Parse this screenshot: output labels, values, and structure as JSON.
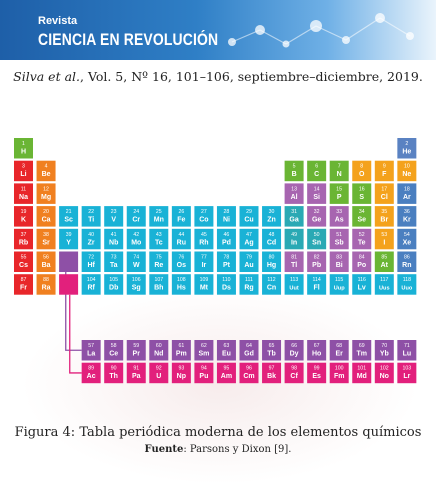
{
  "header": {
    "journal_line1": "Revista",
    "journal_line2": "CIENCIA EN REVOLUCIÓN"
  },
  "citation": {
    "authors": "Silva et al.",
    "details": ", Vol. 5, Nº 16, 101–106, septiembre–diciembre, 2019."
  },
  "figure": {
    "caption": "Figura 4: Tabla periódica moderna de los elementos químicos",
    "source_label": "Fuente",
    "source_text": ": Parsons y Dixon [9]."
  },
  "colors": {
    "alkali": "#e8262a",
    "alkaline": "#f08020",
    "transition": "#19b2d6",
    "post_transition": "#2aa9b4",
    "metalloid": "#a765b0",
    "nonmetal": "#6ab534",
    "halogen": "#f4a21c",
    "noble": "#4a7fc0",
    "lanthanide": "#8e50a6",
    "actinide": "#e2207c",
    "hydrogen": "#6ab534",
    "helium": "#5a82c2"
  },
  "elements": [
    {
      "n": 1,
      "s": "H",
      "r": 1,
      "c": 1,
      "cat": "hydrogen"
    },
    {
      "n": 2,
      "s": "He",
      "r": 1,
      "c": 18,
      "cat": "helium"
    },
    {
      "n": 3,
      "s": "Li",
      "r": 2,
      "c": 1,
      "cat": "alkali"
    },
    {
      "n": 4,
      "s": "Be",
      "r": 2,
      "c": 2,
      "cat": "alkaline"
    },
    {
      "n": 5,
      "s": "B",
      "r": 2,
      "c": 13,
      "cat": "nonmetal"
    },
    {
      "n": 6,
      "s": "C",
      "r": 2,
      "c": 14,
      "cat": "nonmetal"
    },
    {
      "n": 7,
      "s": "N",
      "r": 2,
      "c": 15,
      "cat": "nonmetal"
    },
    {
      "n": 8,
      "s": "O",
      "r": 2,
      "c": 16,
      "cat": "halogen"
    },
    {
      "n": 9,
      "s": "F",
      "r": 2,
      "c": 17,
      "cat": "halogen"
    },
    {
      "n": 10,
      "s": "Ne",
      "r": 2,
      "c": 18,
      "cat": "halogen"
    },
    {
      "n": 11,
      "s": "Na",
      "r": 3,
      "c": 1,
      "cat": "alkali"
    },
    {
      "n": 12,
      "s": "Mg",
      "r": 3,
      "c": 2,
      "cat": "alkaline"
    },
    {
      "n": 13,
      "s": "Al",
      "r": 3,
      "c": 13,
      "cat": "metalloid"
    },
    {
      "n": 14,
      "s": "Si",
      "r": 3,
      "c": 14,
      "cat": "metalloid"
    },
    {
      "n": 15,
      "s": "P",
      "r": 3,
      "c": 15,
      "cat": "nonmetal"
    },
    {
      "n": 16,
      "s": "S",
      "r": 3,
      "c": 16,
      "cat": "nonmetal"
    },
    {
      "n": 17,
      "s": "Cl",
      "r": 3,
      "c": 17,
      "cat": "halogen"
    },
    {
      "n": 18,
      "s": "Ar",
      "r": 3,
      "c": 18,
      "cat": "noble"
    },
    {
      "n": 19,
      "s": "K",
      "r": 4,
      "c": 1,
      "cat": "alkali"
    },
    {
      "n": 20,
      "s": "Ca",
      "r": 4,
      "c": 2,
      "cat": "alkaline"
    },
    {
      "n": 21,
      "s": "Sc",
      "r": 4,
      "c": 3,
      "cat": "transition"
    },
    {
      "n": 22,
      "s": "Ti",
      "r": 4,
      "c": 4,
      "cat": "transition"
    },
    {
      "n": 23,
      "s": "V",
      "r": 4,
      "c": 5,
      "cat": "transition"
    },
    {
      "n": 24,
      "s": "Cr",
      "r": 4,
      "c": 6,
      "cat": "transition"
    },
    {
      "n": 25,
      "s": "Mn",
      "r": 4,
      "c": 7,
      "cat": "transition"
    },
    {
      "n": 26,
      "s": "Fe",
      "r": 4,
      "c": 8,
      "cat": "transition"
    },
    {
      "n": 27,
      "s": "Co",
      "r": 4,
      "c": 9,
      "cat": "transition"
    },
    {
      "n": 28,
      "s": "Ni",
      "r": 4,
      "c": 10,
      "cat": "transition"
    },
    {
      "n": 29,
      "s": "Cu",
      "r": 4,
      "c": 11,
      "cat": "transition"
    },
    {
      "n": 30,
      "s": "Zn",
      "r": 4,
      "c": 12,
      "cat": "transition"
    },
    {
      "n": 31,
      "s": "Ga",
      "r": 4,
      "c": 13,
      "cat": "post_transition"
    },
    {
      "n": 32,
      "s": "Ge",
      "r": 4,
      "c": 14,
      "cat": "metalloid"
    },
    {
      "n": 33,
      "s": "As",
      "r": 4,
      "c": 15,
      "cat": "metalloid"
    },
    {
      "n": 34,
      "s": "Se",
      "r": 4,
      "c": 16,
      "cat": "nonmetal"
    },
    {
      "n": 35,
      "s": "Br",
      "r": 4,
      "c": 17,
      "cat": "halogen"
    },
    {
      "n": 36,
      "s": "Kr",
      "r": 4,
      "c": 18,
      "cat": "noble"
    },
    {
      "n": 37,
      "s": "Rb",
      "r": 5,
      "c": 1,
      "cat": "alkali"
    },
    {
      "n": 38,
      "s": "Sr",
      "r": 5,
      "c": 2,
      "cat": "alkaline"
    },
    {
      "n": 39,
      "s": "Y",
      "r": 5,
      "c": 3,
      "cat": "transition"
    },
    {
      "n": 40,
      "s": "Zr",
      "r": 5,
      "c": 4,
      "cat": "transition"
    },
    {
      "n": 41,
      "s": "Nb",
      "r": 5,
      "c": 5,
      "cat": "transition"
    },
    {
      "n": 42,
      "s": "Mo",
      "r": 5,
      "c": 6,
      "cat": "transition"
    },
    {
      "n": 43,
      "s": "Tc",
      "r": 5,
      "c": 7,
      "cat": "transition"
    },
    {
      "n": 44,
      "s": "Ru",
      "r": 5,
      "c": 8,
      "cat": "transition"
    },
    {
      "n": 45,
      "s": "Rh",
      "r": 5,
      "c": 9,
      "cat": "transition"
    },
    {
      "n": 46,
      "s": "Pd",
      "r": 5,
      "c": 10,
      "cat": "transition"
    },
    {
      "n": 47,
      "s": "Ag",
      "r": 5,
      "c": 11,
      "cat": "transition"
    },
    {
      "n": 48,
      "s": "Cd",
      "r": 5,
      "c": 12,
      "cat": "transition"
    },
    {
      "n": 49,
      "s": "In",
      "r": 5,
      "c": 13,
      "cat": "post_transition"
    },
    {
      "n": 50,
      "s": "Sn",
      "r": 5,
      "c": 14,
      "cat": "post_transition"
    },
    {
      "n": 51,
      "s": "Sb",
      "r": 5,
      "c": 15,
      "cat": "metalloid"
    },
    {
      "n": 52,
      "s": "Te",
      "r": 5,
      "c": 16,
      "cat": "metalloid"
    },
    {
      "n": 53,
      "s": "I",
      "r": 5,
      "c": 17,
      "cat": "halogen"
    },
    {
      "n": 54,
      "s": "Xe",
      "r": 5,
      "c": 18,
      "cat": "noble"
    },
    {
      "n": 55,
      "s": "Cs",
      "r": 6,
      "c": 1,
      "cat": "alkali"
    },
    {
      "n": 56,
      "s": "Ba",
      "r": 6,
      "c": 2,
      "cat": "alkaline"
    },
    {
      "n": 0,
      "s": "",
      "r": 6,
      "c": 3,
      "cat": "lanthanide"
    },
    {
      "n": 72,
      "s": "Hf",
      "r": 6,
      "c": 4,
      "cat": "transition"
    },
    {
      "n": 73,
      "s": "Ta",
      "r": 6,
      "c": 5,
      "cat": "transition"
    },
    {
      "n": 74,
      "s": "W",
      "r": 6,
      "c": 6,
      "cat": "transition"
    },
    {
      "n": 75,
      "s": "Re",
      "r": 6,
      "c": 7,
      "cat": "transition"
    },
    {
      "n": 76,
      "s": "Os",
      "r": 6,
      "c": 8,
      "cat": "transition"
    },
    {
      "n": 77,
      "s": "Ir",
      "r": 6,
      "c": 9,
      "cat": "transition"
    },
    {
      "n": 78,
      "s": "Pt",
      "r": 6,
      "c": 10,
      "cat": "transition"
    },
    {
      "n": 79,
      "s": "Au",
      "r": 6,
      "c": 11,
      "cat": "transition"
    },
    {
      "n": 80,
      "s": "Hg",
      "r": 6,
      "c": 12,
      "cat": "transition"
    },
    {
      "n": 81,
      "s": "Tl",
      "r": 6,
      "c": 13,
      "cat": "metalloid"
    },
    {
      "n": 82,
      "s": "Pb",
      "r": 6,
      "c": 14,
      "cat": "metalloid"
    },
    {
      "n": 83,
      "s": "Bi",
      "r": 6,
      "c": 15,
      "cat": "metalloid"
    },
    {
      "n": 84,
      "s": "Po",
      "r": 6,
      "c": 16,
      "cat": "metalloid"
    },
    {
      "n": 85,
      "s": "At",
      "r": 6,
      "c": 17,
      "cat": "nonmetal"
    },
    {
      "n": 86,
      "s": "Rn",
      "r": 6,
      "c": 18,
      "cat": "noble"
    },
    {
      "n": 87,
      "s": "Fr",
      "r": 7,
      "c": 1,
      "cat": "alkali"
    },
    {
      "n": 88,
      "s": "Ra",
      "r": 7,
      "c": 2,
      "cat": "alkaline"
    },
    {
      "n": 0,
      "s": "",
      "r": 7,
      "c": 3,
      "cat": "actinide"
    },
    {
      "n": 104,
      "s": "Rf",
      "r": 7,
      "c": 4,
      "cat": "transition"
    },
    {
      "n": 105,
      "s": "Db",
      "r": 7,
      "c": 5,
      "cat": "transition"
    },
    {
      "n": 106,
      "s": "Sg",
      "r": 7,
      "c": 6,
      "cat": "transition"
    },
    {
      "n": 107,
      "s": "Bh",
      "r": 7,
      "c": 7,
      "cat": "transition"
    },
    {
      "n": 108,
      "s": "Hs",
      "r": 7,
      "c": 8,
      "cat": "transition"
    },
    {
      "n": 109,
      "s": "Mt",
      "r": 7,
      "c": 9,
      "cat": "transition"
    },
    {
      "n": 110,
      "s": "Ds",
      "r": 7,
      "c": 10,
      "cat": "transition"
    },
    {
      "n": 111,
      "s": "Rg",
      "r": 7,
      "c": 11,
      "cat": "transition"
    },
    {
      "n": 112,
      "s": "Cn",
      "r": 7,
      "c": 12,
      "cat": "transition"
    },
    {
      "n": 113,
      "s": "Uut",
      "r": 7,
      "c": 13,
      "cat": "transition"
    },
    {
      "n": 114,
      "s": "Fl",
      "r": 7,
      "c": 14,
      "cat": "transition"
    },
    {
      "n": 115,
      "s": "Uup",
      "r": 7,
      "c": 15,
      "cat": "transition"
    },
    {
      "n": 116,
      "s": "Lv",
      "r": 7,
      "c": 16,
      "cat": "transition"
    },
    {
      "n": 117,
      "s": "Uus",
      "r": 7,
      "c": 17,
      "cat": "transition"
    },
    {
      "n": 118,
      "s": "Uuo",
      "r": 7,
      "c": 18,
      "cat": "transition"
    },
    {
      "n": 57,
      "s": "La",
      "r": 9,
      "c": 4,
      "cat": "lanthanide"
    },
    {
      "n": 58,
      "s": "Ce",
      "r": 9,
      "c": 5,
      "cat": "lanthanide"
    },
    {
      "n": 59,
      "s": "Pr",
      "r": 9,
      "c": 6,
      "cat": "lanthanide"
    },
    {
      "n": 60,
      "s": "Nd",
      "r": 9,
      "c": 7,
      "cat": "lanthanide"
    },
    {
      "n": 61,
      "s": "Pm",
      "r": 9,
      "c": 8,
      "cat": "lanthanide"
    },
    {
      "n": 62,
      "s": "Sm",
      "r": 9,
      "c": 9,
      "cat": "lanthanide"
    },
    {
      "n": 63,
      "s": "Eu",
      "r": 9,
      "c": 10,
      "cat": "lanthanide"
    },
    {
      "n": 64,
      "s": "Gd",
      "r": 9,
      "c": 11,
      "cat": "lanthanide"
    },
    {
      "n": 65,
      "s": "Tb",
      "r": 9,
      "c": 12,
      "cat": "lanthanide"
    },
    {
      "n": 66,
      "s": "Dy",
      "r": 9,
      "c": 13,
      "cat": "lanthanide"
    },
    {
      "n": 67,
      "s": "Ho",
      "r": 9,
      "c": 14,
      "cat": "lanthanide"
    },
    {
      "n": 68,
      "s": "Er",
      "r": 9,
      "c": 15,
      "cat": "lanthanide"
    },
    {
      "n": 69,
      "s": "Tm",
      "r": 9,
      "c": 16,
      "cat": "lanthanide"
    },
    {
      "n": 70,
      "s": "Yb",
      "r": 9,
      "c": 17,
      "cat": "lanthanide"
    },
    {
      "n": 71,
      "s": "Lu",
      "r": 9,
      "c": 18,
      "cat": "lanthanide"
    },
    {
      "n": 89,
      "s": "Ac",
      "r": 10,
      "c": 4,
      "cat": "actinide"
    },
    {
      "n": 90,
      "s": "Th",
      "r": 10,
      "c": 5,
      "cat": "actinide"
    },
    {
      "n": 91,
      "s": "Pa",
      "r": 10,
      "c": 6,
      "cat": "actinide"
    },
    {
      "n": 92,
      "s": "U",
      "r": 10,
      "c": 7,
      "cat": "actinide"
    },
    {
      "n": 93,
      "s": "Np",
      "r": 10,
      "c": 8,
      "cat": "actinide"
    },
    {
      "n": 94,
      "s": "Pu",
      "r": 10,
      "c": 9,
      "cat": "actinide"
    },
    {
      "n": 95,
      "s": "Am",
      "r": 10,
      "c": 10,
      "cat": "actinide"
    },
    {
      "n": 96,
      "s": "Cm",
      "r": 10,
      "c": 11,
      "cat": "actinide"
    },
    {
      "n": 97,
      "s": "Bk",
      "r": 10,
      "c": 12,
      "cat": "actinide"
    },
    {
      "n": 98,
      "s": "Cf",
      "r": 10,
      "c": 13,
      "cat": "actinide"
    },
    {
      "n": 99,
      "s": "Es",
      "r": 10,
      "c": 14,
      "cat": "actinide"
    },
    {
      "n": 100,
      "s": "Fm",
      "r": 10,
      "c": 15,
      "cat": "actinide"
    },
    {
      "n": 101,
      "s": "Md",
      "r": 10,
      "c": 16,
      "cat": "actinide"
    },
    {
      "n": 102,
      "s": "No",
      "r": 10,
      "c": 17,
      "cat": "actinide"
    },
    {
      "n": 103,
      "s": "Lr",
      "r": 10,
      "c": 18,
      "cat": "actinide"
    }
  ]
}
